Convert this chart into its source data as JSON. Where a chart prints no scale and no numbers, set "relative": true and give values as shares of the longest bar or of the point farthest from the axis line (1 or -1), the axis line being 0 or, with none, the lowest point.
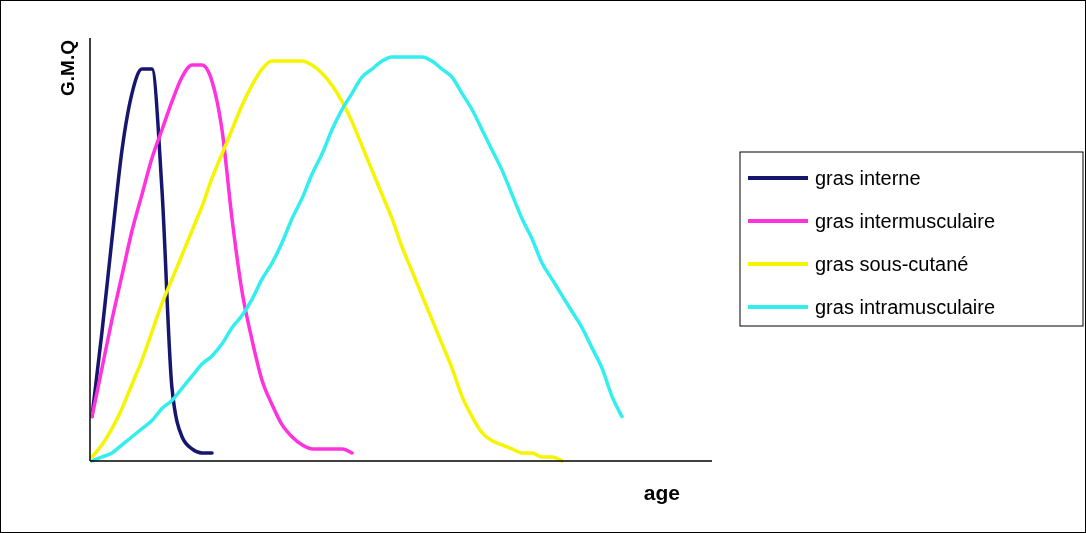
{
  "chart_data": {
    "type": "line",
    "relative": true,
    "xlabel": "age",
    "ylabel": "G.M.Q",
    "legend": "right",
    "categories": [
      null,
      null,
      null,
      null,
      null,
      null,
      null,
      null,
      null,
      null,
      null,
      null,
      null,
      null,
      null,
      null,
      null,
      null,
      null,
      null,
      null,
      null,
      null,
      null,
      null,
      null,
      null,
      null,
      null,
      null,
      null,
      null,
      null,
      null,
      null,
      null,
      null,
      null,
      null,
      null,
      null,
      null,
      null,
      null,
      null,
      null,
      null,
      null,
      null,
      null,
      null,
      null,
      null,
      null,
      null,
      null,
      null,
      null,
      null,
      null,
      null,
      null,
      null
    ],
    "series": [
      {
        "name": "gras interne",
        "color": "#16166e",
        "values": [
          0.11,
          0.32,
          0.55,
          0.77,
          0.91,
          0.97,
          0.97,
          0.67,
          0.18,
          0.06,
          0.03,
          0.02,
          0.02,
          null,
          null,
          null,
          null,
          null,
          null,
          null,
          null,
          null,
          null,
          null,
          null,
          null,
          null,
          null,
          null,
          null,
          null,
          null,
          null,
          null,
          null,
          null,
          null,
          null,
          null,
          null,
          null,
          null,
          null,
          null,
          null,
          null,
          null,
          null,
          null,
          null,
          null,
          null,
          null,
          null,
          null,
          null,
          null,
          null,
          null,
          null,
          null,
          null,
          null
        ]
      },
      {
        "name": "gras intermusculaire",
        "color": "#ff33dd",
        "values": [
          0.11,
          0.23,
          0.35,
          0.46,
          0.57,
          0.66,
          0.75,
          0.82,
          0.89,
          0.95,
          0.98,
          0.98,
          0.94,
          0.82,
          0.6,
          0.42,
          0.3,
          0.2,
          0.14,
          0.09,
          0.06,
          0.04,
          0.03,
          0.03,
          0.03,
          0.03,
          0.02,
          null,
          null,
          null,
          null,
          null,
          null,
          null,
          null,
          null,
          null,
          null,
          null,
          null,
          null,
          null,
          null,
          null,
          null,
          null,
          null,
          null,
          null,
          null,
          null,
          null,
          null,
          null,
          null,
          null,
          null,
          null,
          null,
          null,
          null,
          null,
          null
        ]
      },
      {
        "name": "gras sous-cutané",
        "color": "#f5f500",
        "values": [
          0.01,
          0.04,
          0.08,
          0.13,
          0.19,
          0.25,
          0.32,
          0.39,
          0.45,
          0.51,
          0.57,
          0.63,
          0.7,
          0.76,
          0.82,
          0.88,
          0.93,
          0.97,
          0.99,
          0.99,
          0.99,
          0.99,
          0.98,
          0.96,
          0.93,
          0.89,
          0.84,
          0.78,
          0.72,
          0.66,
          0.6,
          0.53,
          0.47,
          0.41,
          0.35,
          0.29,
          0.23,
          0.16,
          0.11,
          0.07,
          0.05,
          0.04,
          0.03,
          0.02,
          0.02,
          0.01,
          0.01,
          0,
          null,
          null,
          null,
          null,
          null,
          null,
          null,
          null,
          null,
          null,
          null,
          null,
          null,
          null,
          null
        ]
      },
      {
        "name": "gras intramusculaire",
        "color": "#33eeee",
        "values": [
          0,
          0.01,
          0.02,
          0.04,
          0.06,
          0.08,
          0.1,
          0.13,
          0.15,
          0.18,
          0.21,
          0.24,
          0.26,
          0.29,
          0.33,
          0.36,
          0.4,
          0.45,
          0.49,
          0.54,
          0.6,
          0.65,
          0.71,
          0.76,
          0.82,
          0.87,
          0.91,
          0.95,
          0.97,
          0.99,
          1,
          1,
          1,
          1,
          0.99,
          0.97,
          0.95,
          0.91,
          0.87,
          0.82,
          0.77,
          0.72,
          0.66,
          0.6,
          0.55,
          0.49,
          0.45,
          0.41,
          0.37,
          0.33,
          0.28,
          0.23,
          0.16,
          0.11,
          null,
          null,
          null,
          null,
          null,
          null,
          null,
          null,
          null
        ]
      }
    ]
  }
}
